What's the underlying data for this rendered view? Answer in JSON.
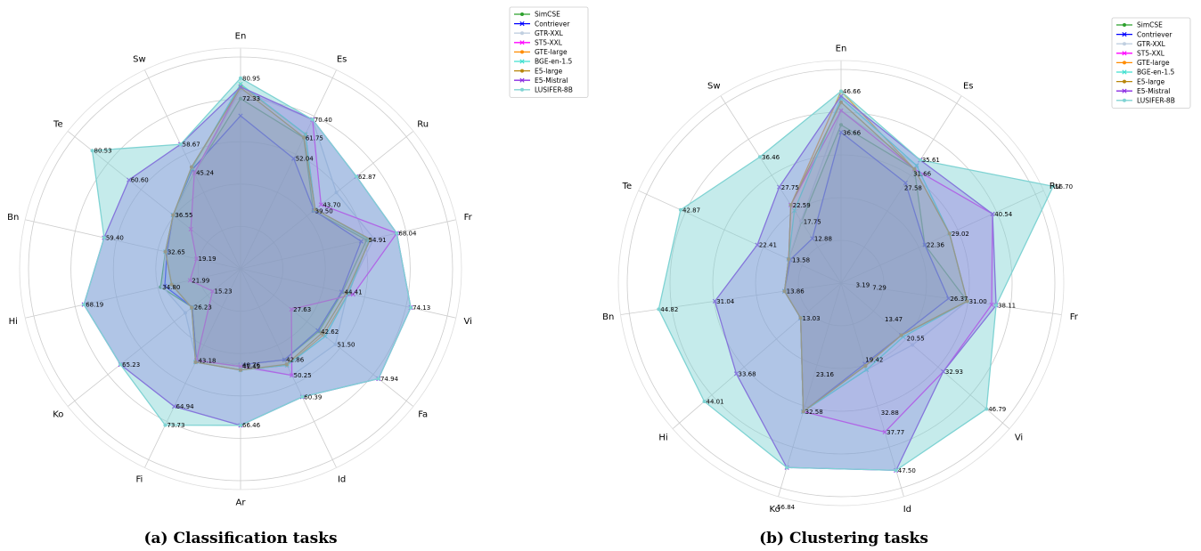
{
  "chart_data": [
    {
      "type": "radar",
      "caption": "(a) Classification tasks",
      "axes": [
        "En",
        "Es",
        "Ru",
        "Fr",
        "Vi",
        "Fa",
        "Id",
        "Ar",
        "Fi",
        "Ko",
        "Hi",
        "Bn",
        "Te",
        "Sw"
      ],
      "rlim": [
        0,
        90
      ],
      "grid": true,
      "legend_position": "top-right",
      "series": [
        {
          "name": "SimCSE",
          "color": "#2ca02c",
          "marker": "o",
          "values": [
            72.3,
            61.8,
            39.5,
            54.9,
            44.4,
            42.6,
            42.9,
            40.8,
            43.2,
            26.2,
            34.8,
            32.7,
            36.6,
            45.2
          ]
        },
        {
          "name": "Contriever",
          "color": "#0000ff",
          "marker": "x",
          "values": [
            65.0,
            52.0,
            39.8,
            52.5,
            44.0,
            42.0,
            42.9,
            40.8,
            43.2,
            26.2,
            33.0,
            32.0,
            36.6,
            47.0
          ]
        },
        {
          "name": "GTR-XXL",
          "color": "#c0cfe0",
          "marker": "o",
          "values": [
            76.0,
            70.4,
            52.0,
            58.0,
            46.5,
            51.5,
            50.3,
            40.8,
            43.2,
            30.0,
            34.0,
            32.6,
            36.6,
            45.0
          ]
        },
        {
          "name": "ST5-XXL",
          "color": "#ff00ff",
          "marker": "x",
          "values": [
            77.3,
            70.4,
            43.7,
            68.0,
            49.0,
            27.6,
            50.2,
            41.5,
            43.2,
            15.2,
            22.0,
            19.2,
            27.0,
            45.2
          ]
        },
        {
          "name": "GTE-large",
          "color": "#ff8c00",
          "marker": "o",
          "values": [
            78.0,
            63.5,
            40.5,
            56.0,
            47.0,
            45.0,
            45.5,
            43.0,
            44.0,
            26.5,
            30.0,
            32.7,
            36.6,
            47.5
          ]
        },
        {
          "name": "BGE-en-1.5",
          "color": "#40e0d0",
          "marker": "x",
          "values": [
            78.5,
            63.5,
            40.5,
            56.0,
            47.0,
            46.0,
            45.5,
            43.0,
            44.0,
            26.5,
            30.0,
            32.7,
            36.6,
            47.5
          ]
        },
        {
          "name": "E5-large",
          "color": "#b8860b",
          "marker": "o",
          "values": [
            77.0,
            62.0,
            40.5,
            56.5,
            46.0,
            44.0,
            45.0,
            43.0,
            44.0,
            26.5,
            30.0,
            32.7,
            36.6,
            48.0
          ]
        },
        {
          "name": "E5-Mistral",
          "color": "#8a2be2",
          "marker": "x",
          "values": [
            77.3,
            70.4,
            62.9,
            68.0,
            74.1,
            74.9,
            60.4,
            66.5,
            64.9,
            65.2,
            68.2,
            59.4,
            60.6,
            58.7
          ]
        },
        {
          "name": "LUSIFER-8B",
          "color": "#7fd3d3",
          "marker": "o",
          "values": [
            81.0,
            70.4,
            62.9,
            68.0,
            74.1,
            74.9,
            60.4,
            66.5,
            73.7,
            65.2,
            68.2,
            59.4,
            80.5,
            58.7
          ]
        }
      ],
      "value_labels": [
        {
          "axis": "En",
          "r": 80.95,
          "text": "80.95"
        },
        {
          "axis": "En",
          "r": 72.33,
          "text": "72.33"
        },
        {
          "axis": "Es",
          "r": 70.4,
          "text": "70.40"
        },
        {
          "axis": "Es",
          "r": 61.75,
          "text": "61.75"
        },
        {
          "axis": "Es",
          "r": 52.04,
          "text": "52.04"
        },
        {
          "axis": "Ru",
          "r": 62.87,
          "text": "62.87"
        },
        {
          "axis": "Ru",
          "r": 43.7,
          "text": "43.70"
        },
        {
          "axis": "Ru",
          "r": 39.5,
          "text": "39.50"
        },
        {
          "axis": "Fr",
          "r": 68.04,
          "text": "68.04"
        },
        {
          "axis": "Fr",
          "r": 54.91,
          "text": "54.91"
        },
        {
          "axis": "Vi",
          "r": 74.13,
          "text": "74.13"
        },
        {
          "axis": "Vi",
          "r": 44.41,
          "text": "44.41"
        },
        {
          "axis": "Fa",
          "r": 74.94,
          "text": "74.94"
        },
        {
          "axis": "Fa",
          "r": 51.5,
          "text": "51.50"
        },
        {
          "axis": "Fa",
          "r": 42.62,
          "text": "42.62"
        },
        {
          "axis": "Fa",
          "r": 27.63,
          "text": "27.63"
        },
        {
          "axis": "Id",
          "r": 60.39,
          "text": "60.39"
        },
        {
          "axis": "Id",
          "r": 50.25,
          "text": "50.25"
        },
        {
          "axis": "Id",
          "r": 42.86,
          "text": "42.86"
        },
        {
          "axis": "Ar",
          "r": 66.46,
          "text": "66.46"
        },
        {
          "axis": "Ar",
          "r": 40.76,
          "text": "40.76"
        },
        {
          "axis": "Ar",
          "r": 41.45,
          "text": "41.45"
        },
        {
          "axis": "Fi",
          "r": 73.73,
          "text": "73.73"
        },
        {
          "axis": "Fi",
          "r": 64.94,
          "text": "64.94"
        },
        {
          "axis": "Fi",
          "r": 43.18,
          "text": "43.18"
        },
        {
          "axis": "Ko",
          "r": 65.23,
          "text": "65.23"
        },
        {
          "axis": "Ko",
          "r": 26.23,
          "text": "26.23"
        },
        {
          "axis": "Ko",
          "r": 15.23,
          "text": "15.23"
        },
        {
          "axis": "Hi",
          "r": 68.19,
          "text": "68.19"
        },
        {
          "axis": "Hi",
          "r": 34.8,
          "text": "34.80"
        },
        {
          "axis": "Hi",
          "r": 21.99,
          "text": "21.99"
        },
        {
          "axis": "Bn",
          "r": 59.4,
          "text": "59.40"
        },
        {
          "axis": "Bn",
          "r": 32.65,
          "text": "32.65"
        },
        {
          "axis": "Bn",
          "r": 19.19,
          "text": "19.19"
        },
        {
          "axis": "Te",
          "r": 80.53,
          "text": "80.53"
        },
        {
          "axis": "Te",
          "r": 60.6,
          "text": "60.60"
        },
        {
          "axis": "Te",
          "r": 36.55,
          "text": "36.55"
        },
        {
          "axis": "Sw",
          "r": 58.67,
          "text": "58.67"
        },
        {
          "axis": "Sw",
          "r": 45.24,
          "text": "45.24"
        }
      ]
    },
    {
      "type": "radar",
      "caption": "(b) Clustering tasks",
      "axes": [
        "En",
        "Es",
        "Ru",
        "Fr",
        "Vi",
        "Id",
        "Ko",
        "Hi",
        "Bn",
        "Te",
        "Sw"
      ],
      "rlim": [
        0,
        52
      ],
      "grid": true,
      "legend_position": "top-right",
      "series": [
        {
          "name": "SimCSE",
          "color": "#2ca02c",
          "marker": "o",
          "values": [
            38.5,
            33.0,
            22.4,
            31.0,
            19.4,
            21.0,
            32.6,
            13.0,
            13.9,
            14.0,
            17.8
          ]
        },
        {
          "name": "Contriever",
          "color": "#0000ff",
          "marker": "x",
          "values": [
            36.7,
            29.0,
            22.4,
            26.4,
            19.4,
            20.5,
            32.6,
            13.0,
            13.9,
            13.6,
            12.9
          ]
        },
        {
          "name": "GTR-XXL",
          "color": "#c0cfe0",
          "marker": "o",
          "values": [
            42.0,
            34.0,
            29.0,
            31.0,
            23.0,
            22.0,
            32.6,
            13.0,
            13.9,
            14.0,
            18.0
          ]
        },
        {
          "name": "ST5-XXL",
          "color": "#ff00ff",
          "marker": "x",
          "values": [
            42.0,
            33.0,
            40.5,
            37.0,
            32.9,
            37.8,
            32.6,
            13.0,
            13.9,
            14.0,
            22.6
          ]
        },
        {
          "name": "GTE-large",
          "color": "#ff8c00",
          "marker": "o",
          "values": [
            46.7,
            33.0,
            29.0,
            31.0,
            19.4,
            21.0,
            32.6,
            13.0,
            13.9,
            14.0,
            22.6
          ]
        },
        {
          "name": "BGE-en-1.5",
          "color": "#40e0d0",
          "marker": "x",
          "values": [
            45.0,
            34.0,
            29.0,
            31.0,
            20.0,
            22.0,
            32.6,
            13.0,
            13.9,
            14.0,
            21.0
          ]
        },
        {
          "name": "E5-large",
          "color": "#b8860b",
          "marker": "o",
          "values": [
            44.0,
            33.0,
            29.0,
            31.0,
            19.4,
            21.0,
            32.6,
            13.0,
            13.9,
            14.0,
            22.6
          ]
        },
        {
          "name": "E5-Mistral",
          "color": "#8a2be2",
          "marker": "x",
          "values": [
            45.5,
            35.6,
            40.5,
            38.1,
            32.9,
            47.5,
            46.8,
            33.7,
            31.0,
            22.4,
            27.8
          ]
        },
        {
          "name": "LUSIFER-8B",
          "color": "#7fd3d3",
          "marker": "o",
          "values": [
            46.7,
            35.6,
            56.7,
            38.1,
            46.8,
            47.5,
            46.8,
            44.0,
            44.8,
            42.9,
            36.5
          ]
        }
      ],
      "value_labels": [
        {
          "axis": "En",
          "r": 46.66,
          "text": "46.66"
        },
        {
          "axis": "En",
          "r": 36.66,
          "text": "36.66"
        },
        {
          "axis": "Es",
          "r": 35.61,
          "text": "35.61"
        },
        {
          "axis": "Es",
          "r": 31.66,
          "text": "31.66"
        },
        {
          "axis": "Es",
          "r": 27.58,
          "text": "27.58"
        },
        {
          "axis": "Ru",
          "r": 56.7,
          "text": "56.70"
        },
        {
          "axis": "Ru",
          "r": 40.54,
          "text": "40.54"
        },
        {
          "axis": "Ru",
          "r": 29.02,
          "text": "29.02"
        },
        {
          "axis": "Ru",
          "r": 22.36,
          "text": "22.36"
        },
        {
          "axis": "Fr",
          "r": 38.11,
          "text": "38.11"
        },
        {
          "axis": "Fr",
          "r": 31.0,
          "text": "31.00"
        },
        {
          "axis": "Fr",
          "r": 26.37,
          "text": "26.37"
        },
        {
          "axis": "Fr",
          "r": 7.29,
          "text": "7.29"
        },
        {
          "axis": "Fr",
          "r": 3.19,
          "text": "3.19"
        },
        {
          "axis": "Vi",
          "r": 46.79,
          "text": "46.79"
        },
        {
          "axis": "Vi",
          "r": 32.93,
          "text": "32.93"
        },
        {
          "axis": "Vi",
          "r": 20.55,
          "text": "20.55"
        },
        {
          "axis": "Vi",
          "r": 13.47,
          "text": "13.47"
        },
        {
          "axis": "Id",
          "r": 47.5,
          "text": "47.50"
        },
        {
          "axis": "Id",
          "r": 37.77,
          "text": "37.77"
        },
        {
          "axis": "Id",
          "r": 32.88,
          "text": "32.88"
        },
        {
          "axis": "Id",
          "r": 19.42,
          "text": "19.42"
        },
        {
          "axis": "Ko",
          "r": 56.84,
          "text": "56.84"
        },
        {
          "axis": "Ko",
          "r": 32.58,
          "text": "32.58"
        },
        {
          "axis": "Ko",
          "r": 23.16,
          "text": "23.16"
        },
        {
          "axis": "Hi",
          "r": 44.01,
          "text": "44.01"
        },
        {
          "axis": "Hi",
          "r": 33.68,
          "text": "33.68"
        },
        {
          "axis": "Hi",
          "r": 13.03,
          "text": "13.03"
        },
        {
          "axis": "Bn",
          "r": 44.82,
          "text": "44.82"
        },
        {
          "axis": "Bn",
          "r": 31.04,
          "text": "31.04"
        },
        {
          "axis": "Bn",
          "r": 13.86,
          "text": "13.86"
        },
        {
          "axis": "Te",
          "r": 42.87,
          "text": "42.87"
        },
        {
          "axis": "Te",
          "r": 22.41,
          "text": "22.41"
        },
        {
          "axis": "Te",
          "r": 13.58,
          "text": "13.58"
        },
        {
          "axis": "Sw",
          "r": 36.46,
          "text": "36.46"
        },
        {
          "axis": "Sw",
          "r": 27.75,
          "text": "27.75"
        },
        {
          "axis": "Sw",
          "r": 22.59,
          "text": "22.59"
        },
        {
          "axis": "Sw",
          "r": 17.75,
          "text": "17.75"
        },
        {
          "axis": "Sw",
          "r": 12.88,
          "text": "12.88"
        }
      ]
    }
  ]
}
